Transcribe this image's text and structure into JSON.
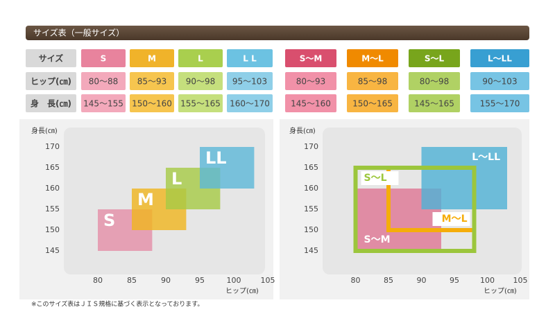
{
  "header": {
    "title": "サイズ表（一般サイズ）"
  },
  "tables": [
    {
      "header": [
        "サイズ",
        "S",
        "M",
        "L",
        "L L"
      ],
      "rows": [
        [
          "ヒップ(㎝)",
          "80～88",
          "85～93",
          "90～98",
          "95～103"
        ],
        [
          "身　長(㎝)",
          "145～155",
          "150～160",
          "155～165",
          "160～170"
        ]
      ]
    },
    {
      "header": [
        "S～M",
        "M～L",
        "S～L",
        "L～LL"
      ],
      "rows": [
        [
          "80～93",
          "85～98",
          "80～98",
          "90～103"
        ],
        [
          "145～160",
          "150～165",
          "145～165",
          "155～170"
        ]
      ]
    }
  ],
  "chart_data": [
    {
      "type": "range-box",
      "y_label": "身長(㎝)",
      "x_label": "ヒップ(㎝)",
      "xlim": [
        75,
        105
      ],
      "ylim": [
        140,
        175
      ],
      "xticks": [
        80,
        85,
        90,
        95,
        100,
        105
      ],
      "yticks": [
        145,
        150,
        155,
        160,
        165,
        170
      ],
      "series": [
        {
          "name": "S",
          "color": "#e58fa8",
          "fill": true,
          "label_pos": "top-left",
          "x": [
            80,
            88
          ],
          "y": [
            145,
            155
          ]
        },
        {
          "name": "M",
          "color": "#f0b51e",
          "fill": true,
          "label_pos": "top-left",
          "x": [
            85,
            93
          ],
          "y": [
            150,
            160
          ]
        },
        {
          "name": "L",
          "color": "#a6cb45",
          "fill": true,
          "label_pos": "top-left",
          "x": [
            90,
            98
          ],
          "y": [
            155,
            165
          ]
        },
        {
          "name": "LL",
          "color": "#5cb8d8",
          "fill": true,
          "label_pos": "top-left",
          "x": [
            95,
            103
          ],
          "y": [
            160,
            170
          ]
        }
      ]
    },
    {
      "type": "range-box",
      "y_label": "身長(㎝)",
      "x_label": "ヒップ(㎝)",
      "xlim": [
        75,
        105
      ],
      "ylim": [
        140,
        175
      ],
      "xticks": [
        80,
        85,
        90,
        95,
        100,
        105
      ],
      "yticks": [
        145,
        150,
        155,
        160,
        165,
        170
      ],
      "series": [
        {
          "name": "S～M",
          "color": "#df7594",
          "fill": true,
          "label_pos": "bottom-left",
          "x": [
            80,
            93
          ],
          "y": [
            145,
            160
          ]
        },
        {
          "name": "M～L",
          "color": "#f5ad0a",
          "fill": false,
          "label_pos": "bottom-right",
          "x": [
            85,
            98
          ],
          "y": [
            150,
            165
          ]
        },
        {
          "name": "S～L",
          "color": "#9cc63c",
          "fill": false,
          "label_pos": "top-left",
          "x": [
            80,
            98
          ],
          "y": [
            145,
            165
          ]
        },
        {
          "name": "L～LL",
          "color": "#4fb1d6",
          "fill": true,
          "label_pos": "top-right",
          "x": [
            90,
            103
          ],
          "y": [
            155,
            170
          ]
        }
      ]
    }
  ],
  "footnote": "※このサイズ表はＪＩＳ規格に基づく表示となっております。"
}
